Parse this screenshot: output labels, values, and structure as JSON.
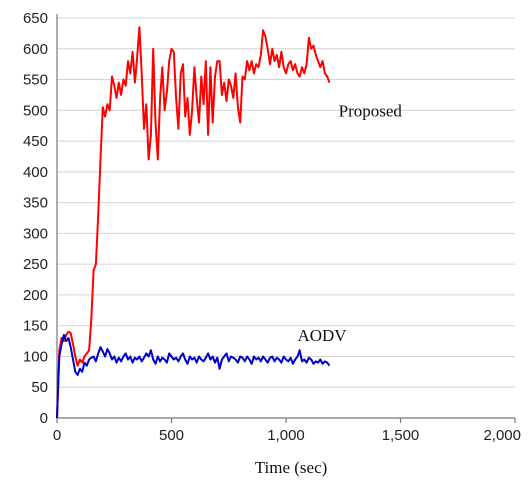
{
  "chart_data": {
    "type": "line",
    "title": "",
    "xlabel": "Time (sec)",
    "ylabel": "",
    "xlim": [
      0,
      2000
    ],
    "ylim": [
      0,
      650
    ],
    "x_ticks": [
      0,
      500,
      1000,
      1500,
      2000
    ],
    "x_tick_labels": [
      "0",
      "500",
      "1,000",
      "1,500",
      "2,000"
    ],
    "y_ticks": [
      0,
      50,
      100,
      150,
      200,
      250,
      300,
      350,
      400,
      450,
      500,
      550,
      600,
      650
    ],
    "y_tick_labels": [
      "0",
      "50",
      "100",
      "150",
      "200",
      "250",
      "300",
      "350",
      "400",
      "450",
      "500",
      "550",
      "600",
      "650"
    ],
    "grid": "horizontal",
    "legend": "inline labels",
    "series": [
      {
        "name": "Proposed",
        "color": "#ff0000",
        "x": [
          0,
          10,
          20,
          30,
          40,
          50,
          60,
          70,
          80,
          90,
          100,
          110,
          120,
          130,
          140,
          150,
          160,
          170,
          180,
          190,
          200,
          210,
          220,
          230,
          240,
          250,
          260,
          270,
          280,
          290,
          300,
          310,
          320,
          330,
          340,
          350,
          360,
          370,
          380,
          390,
          400,
          410,
          420,
          430,
          440,
          450,
          460,
          470,
          480,
          490,
          500,
          510,
          520,
          530,
          540,
          550,
          560,
          570,
          580,
          590,
          600,
          610,
          620,
          630,
          640,
          650,
          660,
          670,
          680,
          690,
          700,
          710,
          720,
          730,
          740,
          750,
          760,
          770,
          780,
          790,
          800,
          810,
          820,
          830,
          840,
          850,
          860,
          870,
          880,
          890,
          900,
          910,
          920,
          930,
          940,
          950,
          960,
          970,
          980,
          990,
          1000,
          1010,
          1020,
          1030,
          1040,
          1050,
          1060,
          1070,
          1080,
          1090,
          1100,
          1110,
          1120,
          1130,
          1140,
          1150,
          1160,
          1170,
          1180,
          1190
        ],
        "y": [
          0,
          110,
          130,
          125,
          135,
          140,
          138,
          120,
          100,
          85,
          95,
          90,
          100,
          105,
          110,
          160,
          240,
          250,
          330,
          420,
          505,
          490,
          510,
          500,
          555,
          540,
          520,
          545,
          525,
          550,
          540,
          580,
          560,
          595,
          545,
          585,
          635,
          560,
          470,
          510,
          420,
          460,
          600,
          480,
          420,
          520,
          570,
          500,
          530,
          580,
          600,
          595,
          520,
          470,
          560,
          575,
          490,
          520,
          460,
          500,
          570,
          520,
          480,
          555,
          510,
          580,
          460,
          570,
          480,
          555,
          580,
          580,
          525,
          545,
          515,
          550,
          540,
          520,
          560,
          505,
          480,
          555,
          550,
          580,
          565,
          580,
          560,
          575,
          570,
          590,
          630,
          620,
          600,
          575,
          600,
          580,
          590,
          570,
          595,
          570,
          560,
          575,
          580,
          565,
          575,
          560,
          555,
          570,
          560,
          575,
          618,
          600,
          605,
          590,
          580,
          570,
          580,
          560,
          555,
          545
        ]
      },
      {
        "name": "AODV",
        "color": "#0000cc",
        "x": [
          0,
          10,
          20,
          30,
          40,
          50,
          60,
          70,
          80,
          90,
          100,
          110,
          120,
          130,
          140,
          150,
          160,
          170,
          180,
          190,
          200,
          210,
          220,
          230,
          240,
          250,
          260,
          270,
          280,
          290,
          300,
          310,
          320,
          330,
          340,
          350,
          360,
          370,
          380,
          390,
          400,
          410,
          420,
          430,
          440,
          450,
          460,
          470,
          480,
          490,
          500,
          510,
          520,
          530,
          540,
          550,
          560,
          570,
          580,
          590,
          600,
          610,
          620,
          630,
          640,
          650,
          660,
          670,
          680,
          690,
          700,
          710,
          720,
          730,
          740,
          750,
          760,
          770,
          780,
          790,
          800,
          810,
          820,
          830,
          840,
          850,
          860,
          870,
          880,
          890,
          900,
          910,
          920,
          930,
          940,
          950,
          960,
          970,
          980,
          990,
          1000,
          1010,
          1020,
          1030,
          1040,
          1050,
          1060,
          1070,
          1080,
          1090,
          1100,
          1110,
          1120,
          1130,
          1140,
          1150,
          1160,
          1170,
          1180,
          1190
        ],
        "y": [
          0,
          100,
          120,
          135,
          125,
          130,
          115,
          95,
          75,
          70,
          80,
          75,
          90,
          85,
          95,
          98,
          100,
          92,
          105,
          115,
          108,
          100,
          112,
          105,
          95,
          100,
          90,
          98,
          92,
          100,
          105,
          95,
          100,
          90,
          98,
          95,
          100,
          92,
          98,
          105,
          100,
          110,
          95,
          88,
          100,
          92,
          98,
          95,
          90,
          105,
          100,
          95,
          98,
          92,
          100,
          105,
          95,
          88,
          100,
          95,
          98,
          90,
          100,
          95,
          92,
          98,
          105,
          95,
          100,
          90,
          98,
          80,
          95,
          100,
          105,
          92,
          100,
          98,
          95,
          90,
          100,
          98,
          92,
          100,
          95,
          88,
          100,
          95,
          98,
          92,
          100,
          95,
          90,
          98,
          100,
          92,
          98,
          95,
          90,
          100,
          95,
          92,
          98,
          88,
          95,
          100,
          110,
          92,
          95,
          90,
          98,
          95,
          88,
          92,
          90,
          95,
          88,
          92,
          90,
          85
        ]
      }
    ],
    "annotations": [
      {
        "text": "Proposed",
        "x": 1230,
        "y": 500
      },
      {
        "text": "AODV",
        "x": 1050,
        "y": 135
      }
    ]
  }
}
